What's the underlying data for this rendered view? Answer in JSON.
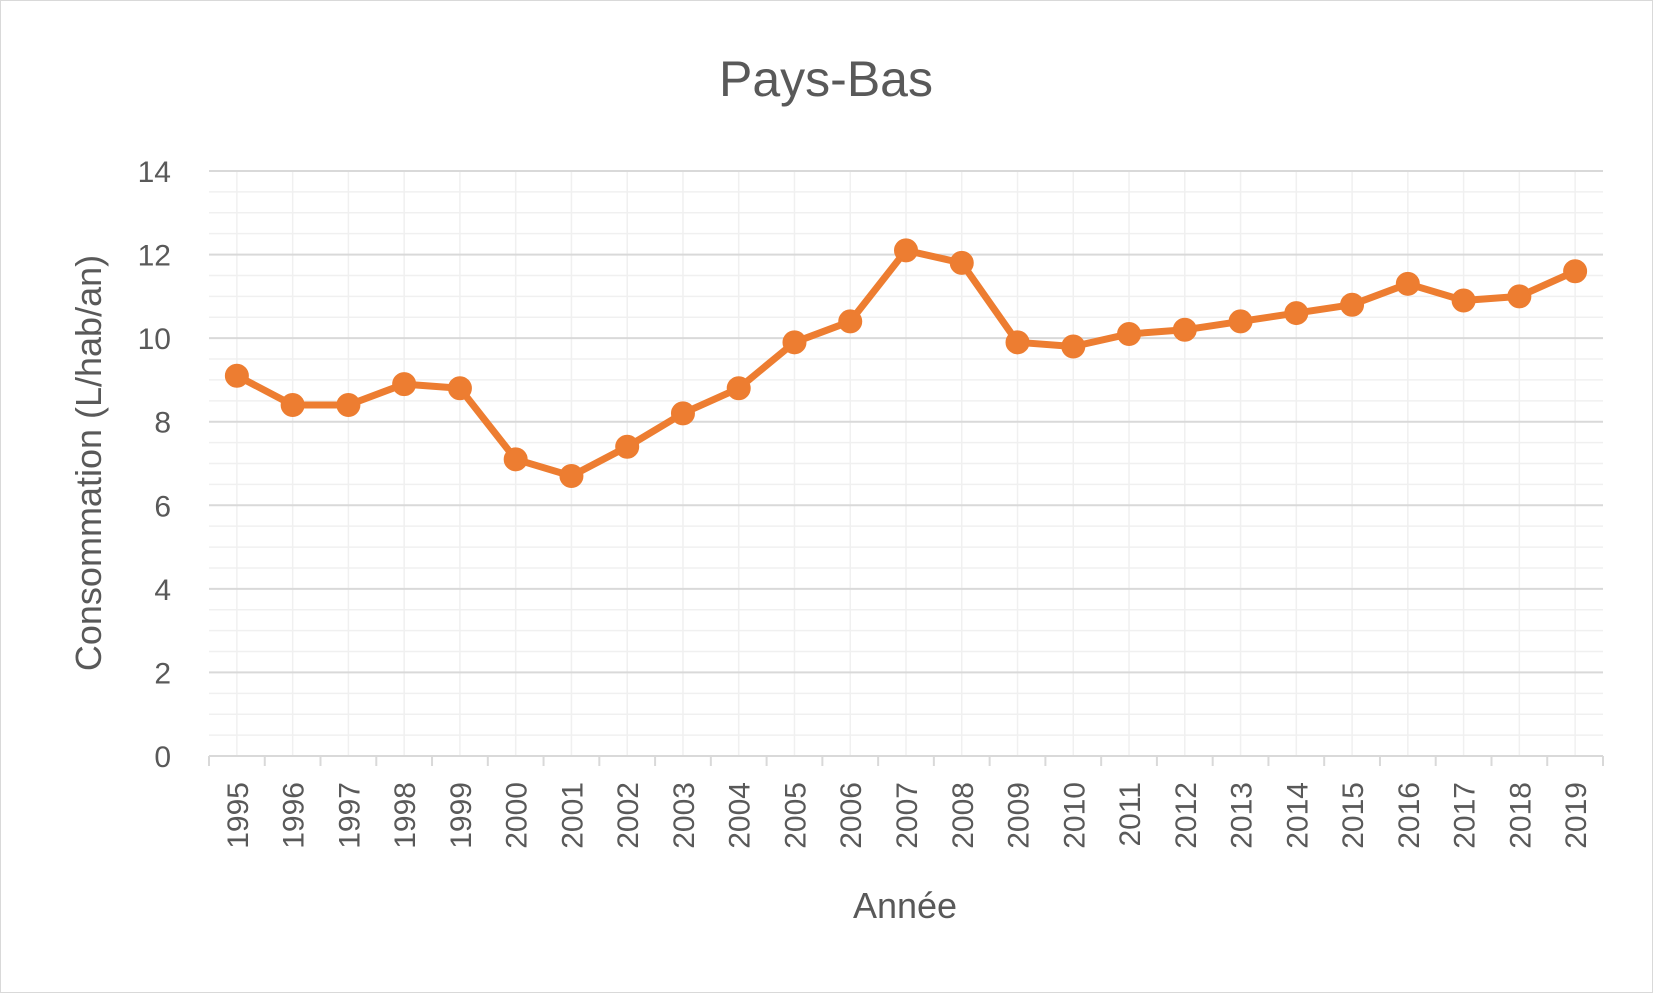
{
  "chart_data": {
    "type": "line",
    "title": "Pays-Bas",
    "xlabel": "Année",
    "ylabel": "Consommation (L/hab/an)",
    "ylim": [
      0,
      14
    ],
    "y_ticks": [
      "0",
      "2",
      "4",
      "6",
      "8",
      "10",
      "12",
      "14"
    ],
    "categories": [
      "1995",
      "1996",
      "1997",
      "1998",
      "1999",
      "2000",
      "2001",
      "2002",
      "2003",
      "2004",
      "2005",
      "2006",
      "2007",
      "2008",
      "2009",
      "2010",
      "2011",
      "2012",
      "2013",
      "2014",
      "2015",
      "2016",
      "2017",
      "2018",
      "2019"
    ],
    "series": [
      {
        "values": [
          9.1,
          8.4,
          8.4,
          8.9,
          8.8,
          7.1,
          6.7,
          7.4,
          8.2,
          8.8,
          9.9,
          10.4,
          12.1,
          11.8,
          9.9,
          9.8,
          10.1,
          10.2,
          10.4,
          10.6,
          10.8,
          11.3,
          10.9,
          11.0,
          11.6
        ],
        "color": "#ed7d31"
      }
    ],
    "grid": true,
    "legend": "none",
    "colors": {
      "text": "#595959",
      "major_grid": "#d9d9d9",
      "minor_grid": "#f0f0f0",
      "axis": "#d9d9d9"
    }
  }
}
